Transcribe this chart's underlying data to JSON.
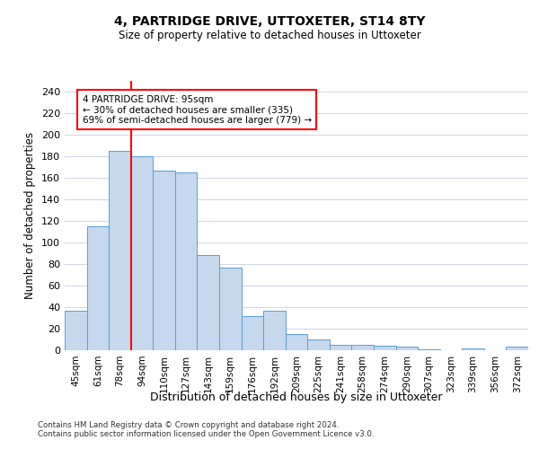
{
  "title1": "4, PARTRIDGE DRIVE, UTTOXETER, ST14 8TY",
  "title2": "Size of property relative to detached houses in Uttoxeter",
  "xlabel": "Distribution of detached houses by size in Uttoxeter",
  "ylabel": "Number of detached properties",
  "categories": [
    "45sqm",
    "61sqm",
    "78sqm",
    "94sqm",
    "110sqm",
    "127sqm",
    "143sqm",
    "159sqm",
    "176sqm",
    "192sqm",
    "209sqm",
    "225sqm",
    "241sqm",
    "258sqm",
    "274sqm",
    "290sqm",
    "307sqm",
    "323sqm",
    "339sqm",
    "356sqm",
    "372sqm"
  ],
  "values": [
    37,
    115,
    185,
    180,
    167,
    165,
    88,
    77,
    32,
    37,
    15,
    10,
    5,
    5,
    4,
    3,
    1,
    0,
    2,
    0,
    3
  ],
  "bar_color": "#c5d8ed",
  "bar_edge_color": "#5a9fd4",
  "red_line_index": 3,
  "annotation_title": "4 PARTRIDGE DRIVE: 95sqm",
  "annotation_line1": "← 30% of detached houses are smaller (335)",
  "annotation_line2": "69% of semi-detached houses are larger (779) →",
  "ylim": [
    0,
    250
  ],
  "yticks": [
    0,
    20,
    40,
    60,
    80,
    100,
    120,
    140,
    160,
    180,
    200,
    220,
    240
  ],
  "footer1": "Contains HM Land Registry data © Crown copyright and database right 2024.",
  "footer2": "Contains public sector information licensed under the Open Government Licence v3.0.",
  "background_color": "#ffffff",
  "grid_color": "#d0d8e8"
}
